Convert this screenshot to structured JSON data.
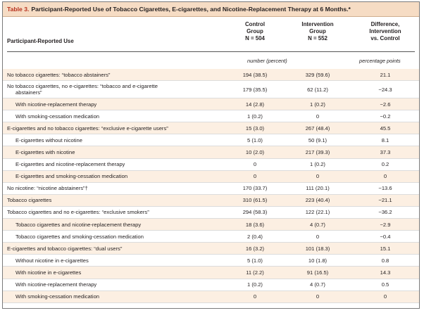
{
  "table": {
    "label": "Table 3.",
    "title": "Participant-Reported Use of Tobacco Cigarettes, E-cigarettes, and Nicotine-Replacement Therapy at 6 Months.*",
    "row_header": "Participant-Reported Use",
    "columns": [
      {
        "line1": "Control",
        "line2": "Group",
        "line3": "N = 504"
      },
      {
        "line1": "Intervention",
        "line2": "Group",
        "line3": "N = 552"
      },
      {
        "line1": "Difference,",
        "line2": "Intervention",
        "line3": "vs. Control"
      }
    ],
    "units_counts": "number (percent)",
    "units_diff": "percentage points",
    "rows": [
      {
        "label": "No tobacco cigarettes: “tobacco abstainers”",
        "control": "194 (38.5)",
        "intervention": "329 (59.6)",
        "diff": "21.1"
      },
      {
        "label": "No tobacco cigarettes, no e-cigarettes: “tobacco and e-cigarette",
        "label2": "abstainers”",
        "control": "179 (35.5)",
        "intervention": "62 (11.2)",
        "diff": "−24.3"
      },
      {
        "label": "With nicotine-replacement therapy",
        "indent": true,
        "control": "14 (2.8)",
        "intervention": "1 (0.2)",
        "diff": "−2.6"
      },
      {
        "label": "With smoking-cessation medication",
        "indent": true,
        "control": "1 (0.2)",
        "intervention": "0",
        "diff": "−0.2"
      },
      {
        "label": "E-cigarettes and no tobacco cigarettes: “exclusive e-cigarette users”",
        "control": "15 (3.0)",
        "intervention": "267 (48.4)",
        "diff": "45.5"
      },
      {
        "label": "E-cigarettes without nicotine",
        "indent": true,
        "control": "5 (1.0)",
        "intervention": "50 (9.1)",
        "diff": "8.1"
      },
      {
        "label": "E-cigarettes with nicotine",
        "indent": true,
        "control": "10 (2.0)",
        "intervention": "217 (39.3)",
        "diff": "37.3"
      },
      {
        "label": "E-cigarettes and nicotine-replacement therapy",
        "indent": true,
        "control": "0",
        "intervention": "1 (0.2)",
        "diff": "0.2"
      },
      {
        "label": "E-cigarettes and smoking-cessation medication",
        "indent": true,
        "control": "0",
        "intervention": "0",
        "diff": "0"
      },
      {
        "label": "No nicotine: “nicotine abstainers”†",
        "control": "170 (33.7)",
        "intervention": "111 (20.1)",
        "diff": "−13.6"
      },
      {
        "label": "Tobacco cigarettes",
        "control": "310 (61.5)",
        "intervention": "223 (40.4)",
        "diff": "−21.1"
      },
      {
        "label": "Tobacco cigarettes and no e-cigarettes: “exclusive smokers”",
        "control": "294 (58.3)",
        "intervention": "122 (22.1)",
        "diff": "−36.2"
      },
      {
        "label": "Tobacco cigarettes and nicotine-replacement therapy",
        "indent": true,
        "control": "18 (3.6)",
        "intervention": "4 (0.7)",
        "diff": "−2.9"
      },
      {
        "label": "Tobacco cigarettes and smoking-cessation medication",
        "indent": true,
        "control": "2 (0.4)",
        "intervention": "0",
        "diff": "−0.4"
      },
      {
        "label": "E-cigarettes and tobacco cigarettes: “dual users”",
        "control": "16 (3.2)",
        "intervention": "101 (18.3)",
        "diff": "15.1"
      },
      {
        "label": "Without nicotine in e-cigarettes",
        "indent": true,
        "control": "5 (1.0)",
        "intervention": "10 (1.8)",
        "diff": "0.8"
      },
      {
        "label": "With nicotine in e-cigarettes",
        "indent": true,
        "control": "11 (2.2)",
        "intervention": "91 (16.5)",
        "diff": "14.3"
      },
      {
        "label": "With nicotine-replacement therapy",
        "indent": true,
        "control": "1 (0.2)",
        "intervention": "4 (0.7)",
        "diff": "0.5"
      },
      {
        "label": "With smoking-cessation medication",
        "indent": true,
        "control": "0",
        "intervention": "0",
        "diff": "0"
      }
    ]
  }
}
